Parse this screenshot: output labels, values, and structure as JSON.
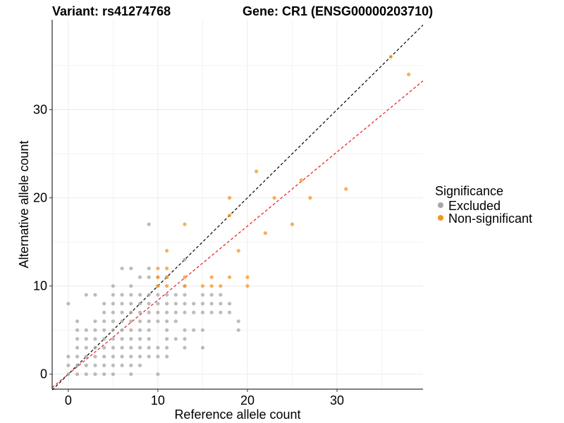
{
  "chart_data": {
    "type": "scatter",
    "title_left": "Variant: rs41274768",
    "title_right": "Gene: CR1 (ENSG00000203710)",
    "xlabel": "Reference allele count",
    "ylabel": "Alternative allele count",
    "xlim": [
      -1.8,
      39.6
    ],
    "ylim": [
      -1.7,
      40.2
    ],
    "x_ticks": [
      0,
      10,
      20,
      30
    ],
    "y_ticks": [
      0,
      10,
      20,
      30
    ],
    "grid": true,
    "legend": {
      "title": "Significance",
      "position": "right",
      "entries": [
        {
          "label": "Excluded",
          "color": "#a6a6a6"
        },
        {
          "label": "Non-significant",
          "color": "#f7941d"
        }
      ]
    },
    "reference_lines": [
      {
        "slope": 1.0,
        "intercept": 0,
        "color": "#000000",
        "style": "dashed"
      },
      {
        "slope": 0.84,
        "intercept": 0,
        "color": "#e8191b",
        "style": "dashed"
      }
    ],
    "series": [
      {
        "name": "Excluded",
        "color": "#a6a6a6",
        "points": [
          [
            0,
            0
          ],
          [
            0,
            1
          ],
          [
            0,
            2
          ],
          [
            0,
            8
          ],
          [
            1,
            0
          ],
          [
            1,
            1
          ],
          [
            1,
            2
          ],
          [
            1,
            3
          ],
          [
            1,
            4
          ],
          [
            1,
            5
          ],
          [
            1,
            6
          ],
          [
            2,
            0
          ],
          [
            2,
            1
          ],
          [
            2,
            2
          ],
          [
            2,
            3
          ],
          [
            2,
            4
          ],
          [
            2,
            5
          ],
          [
            2,
            9
          ],
          [
            3,
            0
          ],
          [
            3,
            1
          ],
          [
            3,
            2
          ],
          [
            3,
            3
          ],
          [
            3,
            4
          ],
          [
            3,
            5
          ],
          [
            3,
            6
          ],
          [
            3,
            9
          ],
          [
            4,
            0
          ],
          [
            4,
            1
          ],
          [
            4,
            2
          ],
          [
            4,
            3
          ],
          [
            4,
            4
          ],
          [
            4,
            5
          ],
          [
            4,
            6
          ],
          [
            4,
            7
          ],
          [
            4,
            8
          ],
          [
            5,
            0
          ],
          [
            5,
            1
          ],
          [
            5,
            2
          ],
          [
            5,
            3
          ],
          [
            5,
            4
          ],
          [
            5,
            5
          ],
          [
            5,
            6
          ],
          [
            5,
            7
          ],
          [
            5,
            8
          ],
          [
            5,
            9
          ],
          [
            5,
            10
          ],
          [
            6,
            1
          ],
          [
            6,
            2
          ],
          [
            6,
            3
          ],
          [
            6,
            4
          ],
          [
            6,
            5
          ],
          [
            6,
            6
          ],
          [
            6,
            7
          ],
          [
            6,
            8
          ],
          [
            6,
            9
          ],
          [
            6,
            12
          ],
          [
            7,
            0
          ],
          [
            7,
            1
          ],
          [
            7,
            2
          ],
          [
            7,
            3
          ],
          [
            7,
            4
          ],
          [
            7,
            5
          ],
          [
            7,
            6
          ],
          [
            7,
            7
          ],
          [
            7,
            8
          ],
          [
            7,
            9
          ],
          [
            7,
            10
          ],
          [
            7,
            12
          ],
          [
            8,
            1
          ],
          [
            8,
            2
          ],
          [
            8,
            3
          ],
          [
            8,
            4
          ],
          [
            8,
            5
          ],
          [
            8,
            6
          ],
          [
            8,
            7
          ],
          [
            8,
            8
          ],
          [
            8,
            9
          ],
          [
            8,
            11
          ],
          [
            9,
            2
          ],
          [
            9,
            3
          ],
          [
            9,
            4
          ],
          [
            9,
            5
          ],
          [
            9,
            6
          ],
          [
            9,
            7
          ],
          [
            9,
            8
          ],
          [
            9,
            9
          ],
          [
            9,
            11
          ],
          [
            9,
            12
          ],
          [
            9,
            17
          ],
          [
            10,
            0
          ],
          [
            10,
            2
          ],
          [
            10,
            3
          ],
          [
            10,
            6
          ],
          [
            10,
            7
          ],
          [
            10,
            8
          ],
          [
            10,
            9
          ],
          [
            10,
            10
          ],
          [
            10,
            11
          ],
          [
            11,
            2
          ],
          [
            11,
            3
          ],
          [
            11,
            4
          ],
          [
            11,
            5
          ],
          [
            11,
            6
          ],
          [
            11,
            7
          ],
          [
            11,
            8
          ],
          [
            11,
            9
          ],
          [
            11,
            11
          ],
          [
            12,
            4
          ],
          [
            12,
            6
          ],
          [
            12,
            7
          ],
          [
            12,
            8
          ],
          [
            12,
            9
          ],
          [
            13,
            3
          ],
          [
            13,
            4
          ],
          [
            13,
            5
          ],
          [
            13,
            7
          ],
          [
            13,
            8
          ],
          [
            13,
            9
          ],
          [
            13,
            10
          ],
          [
            13,
            13
          ],
          [
            14,
            5
          ],
          [
            14,
            7
          ],
          [
            14,
            8
          ],
          [
            15,
            3
          ],
          [
            15,
            5
          ],
          [
            15,
            7
          ],
          [
            15,
            8
          ],
          [
            15,
            9
          ],
          [
            16,
            7
          ],
          [
            16,
            8
          ],
          [
            16,
            9
          ],
          [
            17,
            7
          ],
          [
            17,
            8
          ],
          [
            17,
            9
          ],
          [
            18,
            7
          ],
          [
            18,
            8
          ],
          [
            19,
            5
          ],
          [
            19,
            6
          ]
        ]
      },
      {
        "name": "Non-significant",
        "color": "#f7941d",
        "points": [
          [
            10,
            10
          ],
          [
            10,
            11
          ],
          [
            10,
            12
          ],
          [
            11,
            10
          ],
          [
            11,
            11
          ],
          [
            11,
            12
          ],
          [
            11,
            14
          ],
          [
            13,
            10
          ],
          [
            13,
            11
          ],
          [
            13,
            17
          ],
          [
            15,
            10
          ],
          [
            16,
            10
          ],
          [
            16,
            11
          ],
          [
            17,
            10
          ],
          [
            18,
            11
          ],
          [
            18,
            18
          ],
          [
            18,
            20
          ],
          [
            19,
            14
          ],
          [
            20,
            10
          ],
          [
            20,
            11
          ],
          [
            21,
            23
          ],
          [
            22,
            16
          ],
          [
            23,
            20
          ],
          [
            25,
            17
          ],
          [
            26,
            22
          ],
          [
            27,
            20
          ],
          [
            31,
            21
          ],
          [
            36,
            36
          ],
          [
            38,
            34
          ]
        ]
      }
    ]
  }
}
